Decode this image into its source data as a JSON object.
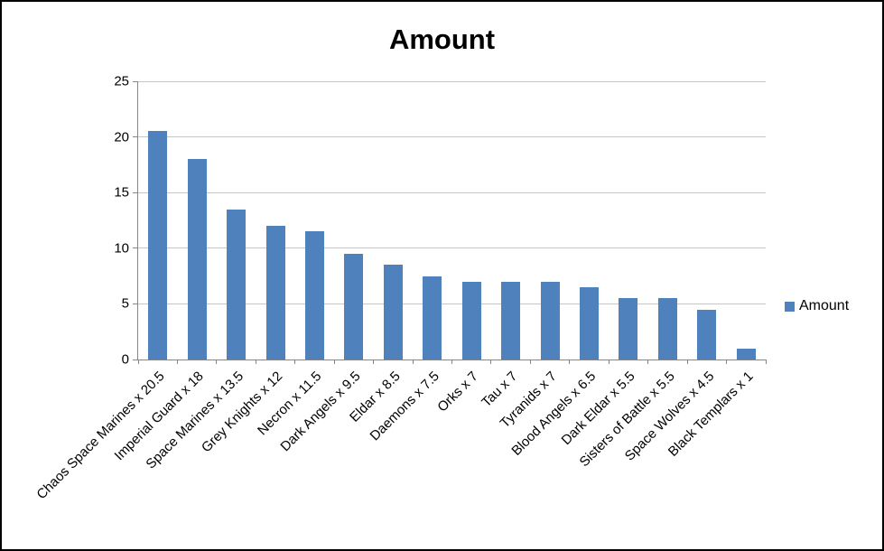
{
  "title": "Amount",
  "legend": {
    "label": "Amount",
    "color": "#4F81BD"
  },
  "chart_data": {
    "type": "bar",
    "title": "Amount",
    "categories": [
      "Chaos Space Marines x 20.5",
      "Imperial Guard x 18",
      "Space Marines x 13.5",
      "Grey Knights x 12",
      "Necron x 11.5",
      "Dark Angels x 9.5",
      "Eldar x 8.5",
      "Daemons x 7.5",
      "Orks x 7",
      "Tau x 7",
      "Tyranids x 7",
      "Blood Angels x 6.5",
      "Dark Eldar x 5.5",
      "Sisters of Battle x 5.5",
      "Space Wolves x 4.5",
      "Black Templars x 1"
    ],
    "values": [
      20.5,
      18,
      13.5,
      12,
      11.5,
      9.5,
      8.5,
      7.5,
      7,
      7,
      7,
      6.5,
      5.5,
      5.5,
      4.5,
      1
    ],
    "series": [
      {
        "name": "Amount",
        "values": [
          20.5,
          18,
          13.5,
          12,
          11.5,
          9.5,
          8.5,
          7.5,
          7,
          7,
          7,
          6.5,
          5.5,
          5.5,
          4.5,
          1
        ]
      }
    ],
    "xlabel": "",
    "ylabel": "",
    "ylim": [
      0,
      25
    ],
    "yticks": [
      0,
      5,
      10,
      15,
      20,
      25
    ],
    "grid": true,
    "legend_position": "right",
    "bar_color": "#4F81BD"
  }
}
